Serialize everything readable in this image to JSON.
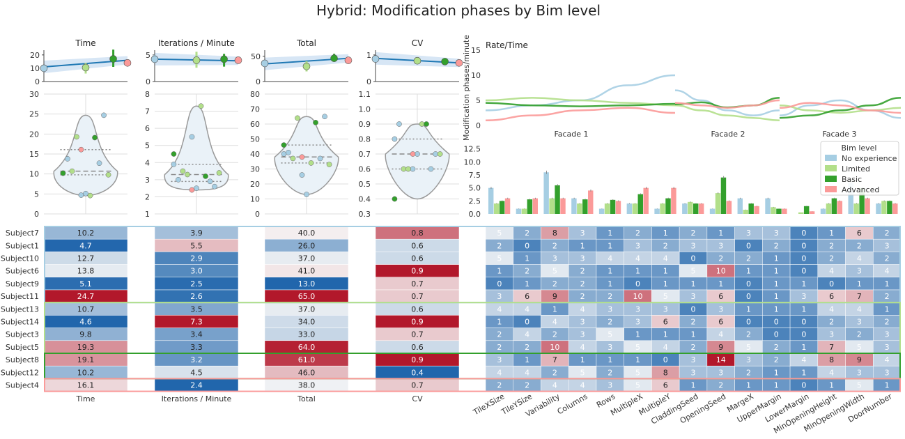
{
  "title": "Hybrid: Modification phases by Bim level",
  "colors": {
    "levels": [
      "#a6cee3",
      "#b2df8a",
      "#33a02c",
      "#fb9a99"
    ],
    "regline": "#1f78b4",
    "band": "#a6c8e8",
    "violin_fill": "#eaf2f8",
    "violin_stroke": "#999999",
    "grid": "#dddddd",
    "heat_low": "#2166ac",
    "heat_mid": "#f7f7f7",
    "heat_high": "#b2182b"
  },
  "chart_data": [
    {
      "type": "scatter",
      "title": "Time",
      "ylim": [
        0,
        22
      ],
      "yticks": [
        "0",
        "10",
        "20"
      ],
      "points": [
        {
          "group": 0,
          "y": 10
        },
        {
          "group": 1,
          "y": 10.5
        },
        {
          "group": 2,
          "y": 17
        },
        {
          "group": 3,
          "y": 14
        }
      ],
      "errors": [
        {
          "group": 0,
          "low": 9,
          "high": 11
        },
        {
          "group": 1,
          "low": 6,
          "high": 14
        },
        {
          "group": 2,
          "low": 11,
          "high": 24
        },
        {
          "group": 3,
          "low": 13,
          "high": 16
        }
      ],
      "regression": {
        "start": 11,
        "end": 16
      }
    },
    {
      "type": "scatter",
      "title": "Iterations / Minute",
      "ylim": [
        0,
        5.5
      ],
      "yticks": [
        "0",
        "5"
      ],
      "points": [
        {
          "group": 0,
          "y": 4.2
        },
        {
          "group": 1,
          "y": 4.0
        },
        {
          "group": 2,
          "y": 4.2
        },
        {
          "group": 3,
          "y": 4.0
        }
      ],
      "errors": [
        {
          "group": 0,
          "low": 3.5,
          "high": 5.0
        },
        {
          "group": 1,
          "low": 2.6,
          "high": 5.6
        },
        {
          "group": 2,
          "low": 2.8,
          "high": 5.2
        },
        {
          "group": 3,
          "low": 3.5,
          "high": 4.5
        }
      ],
      "regression": {
        "start": 4.2,
        "end": 3.9
      }
    },
    {
      "type": "scatter",
      "title": "Total",
      "ylim": [
        0,
        58
      ],
      "yticks": [
        "0",
        "50"
      ],
      "points": [
        {
          "group": 0,
          "y": 36
        },
        {
          "group": 1,
          "y": 30
        },
        {
          "group": 2,
          "y": 46
        },
        {
          "group": 3,
          "y": 42
        }
      ],
      "errors": [
        {
          "group": 0,
          "low": 30,
          "high": 42
        },
        {
          "group": 1,
          "low": 20,
          "high": 40
        },
        {
          "group": 2,
          "low": 40,
          "high": 55
        },
        {
          "group": 3,
          "low": 38,
          "high": 46
        }
      ],
      "regression": {
        "start": 35,
        "end": 46
      }
    },
    {
      "type": "scatter",
      "title": "CV",
      "ylim": [
        0,
        1.1
      ],
      "yticks": [
        "0",
        "1"
      ],
      "points": [
        {
          "group": 0,
          "y": 0.85
        },
        {
          "group": 1,
          "y": 0.78
        },
        {
          "group": 2,
          "y": 0.75
        },
        {
          "group": 3,
          "y": 0.7
        }
      ],
      "errors": [
        {
          "group": 0,
          "low": 0.8,
          "high": 0.9
        },
        {
          "group": 1,
          "low": 0.7,
          "high": 0.86
        },
        {
          "group": 2,
          "low": 0.65,
          "high": 0.85
        },
        {
          "group": 3,
          "low": 0.65,
          "high": 0.75
        }
      ],
      "regression": {
        "start": 0.87,
        "end": 0.7
      }
    },
    {
      "type": "line",
      "title": "Rate/Time",
      "ylabel": "Modification phases/minute",
      "ylim": [
        0,
        15
      ],
      "yticks": [
        "0",
        "5",
        "10",
        "15"
      ],
      "facets": [
        "Facade 1",
        "Facade 2",
        "Facade 3"
      ],
      "series": [
        {
          "group": 0,
          "segments": [
            [
              3,
              4,
              5,
              8,
              10
            ],
            [
              7,
              5,
              3,
              2,
              3
            ],
            [
              2,
              4,
              5,
              3,
              1.5
            ]
          ]
        },
        {
          "group": 1,
          "segments": [
            [
              5,
              5.5,
              5,
              4.5,
              4
            ],
            [
              4,
              3,
              2,
              1.5,
              1
            ],
            [
              4,
              3,
              2.5,
              3,
              3.5
            ]
          ]
        },
        {
          "group": 2,
          "segments": [
            [
              4.5,
              4,
              3.8,
              4,
              4.3
            ],
            [
              4.2,
              4.6,
              3.6,
              4,
              5.5
            ],
            [
              1.5,
              2,
              3,
              4,
              5.5
            ]
          ]
        },
        {
          "group": 3,
          "segments": [
            [
              1,
              2,
              3,
              3.5,
              2.5
            ],
            [
              4.5,
              4,
              3.5,
              4,
              5
            ],
            [
              3.5,
              4.5,
              4,
              3,
              2.5
            ]
          ]
        }
      ]
    },
    {
      "type": "bar",
      "ylim": [
        0,
        15
      ],
      "yticks": [
        "0.0",
        "2.5",
        "5.0",
        "7.5",
        "10.0",
        "12.5"
      ],
      "legend_title": "Bim level",
      "legend": [
        "No experience",
        "Limited",
        "Basic",
        "Advanced"
      ],
      "legend_position": "upper-right",
      "categories": [
        "TileXSize",
        "TileYSize",
        "Variability",
        "Columns",
        "Rows",
        "MultipleX",
        "MultipleY",
        "CladdingSeed",
        "OpeningSeed",
        "MargeX",
        "UpperMargin",
        "LowerMargin",
        "MinOpeningHeight",
        "MinOpeningWidth",
        "DoorNumber"
      ],
      "series": [
        {
          "name": "No experience",
          "values": [
            5,
            1,
            8,
            3,
            1,
            2,
            1,
            2,
            1,
            3,
            3,
            0,
            1,
            6,
            2
          ]
        },
        {
          "name": "Limited",
          "values": [
            2,
            1,
            3,
            2,
            2,
            2,
            2,
            2.3,
            4,
            0.8,
            1.3,
            0.3,
            2,
            2,
            2.5
          ]
        },
        {
          "name": "Basic",
          "values": [
            2.5,
            2.8,
            5.5,
            2.8,
            2.7,
            3.8,
            3,
            2,
            7,
            2,
            1,
            1.5,
            3,
            5,
            2.5
          ]
        },
        {
          "name": "Advanced",
          "values": [
            3,
            3,
            3,
            4.5,
            2.5,
            5,
            5,
            2,
            2.5,
            1.5,
            1,
            0.5,
            2.5,
            3,
            2
          ]
        }
      ]
    },
    {
      "type": "violin",
      "panels": [
        {
          "name": "Time",
          "ylim": [
            0,
            30
          ],
          "yticks": [
            "0",
            "5",
            "10",
            "15",
            "20",
            "25",
            "30"
          ]
        },
        {
          "name": "Iterations / Minute",
          "ylim": [
            1,
            8
          ],
          "yticks": [
            "1",
            "2",
            "3",
            "4",
            "5",
            "6",
            "7",
            "8"
          ]
        },
        {
          "name": "Total",
          "ylim": [
            0,
            80
          ],
          "yticks": [
            "0",
            "10",
            "20",
            "30",
            "40",
            "50",
            "60",
            "70",
            "80"
          ]
        },
        {
          "name": "CV",
          "ylim": [
            0.3,
            1.1
          ],
          "yticks": [
            "0.3",
            "0.4",
            "0.5",
            "0.6",
            "0.7",
            "0.8",
            "0.9",
            "1.0",
            "1.1"
          ]
        }
      ]
    },
    {
      "type": "heatmap",
      "subjects": [
        "Subject7",
        "Subject1",
        "Subject10",
        "Subject6",
        "Subject9",
        "Subject11",
        "Subject13",
        "Subject14",
        "Subject3",
        "Subject5",
        "Subject8",
        "Subject12",
        "Subject4"
      ],
      "groups": [
        0,
        0,
        0,
        0,
        0,
        0,
        1,
        1,
        1,
        1,
        2,
        2,
        3
      ],
      "metrics": [
        "Time",
        "Iterations / Minute",
        "Total",
        "CV"
      ],
      "metric_values": [
        [
          10.2,
          3.9,
          40.0,
          0.8
        ],
        [
          4.7,
          5.5,
          26.0,
          0.6
        ],
        [
          12.7,
          2.9,
          37.0,
          0.6
        ],
        [
          13.8,
          3.0,
          41.0,
          0.9
        ],
        [
          5.1,
          2.5,
          13.0,
          0.7
        ],
        [
          24.7,
          2.6,
          65.0,
          0.7
        ],
        [
          10.7,
          3.5,
          37.0,
          0.6
        ],
        [
          4.6,
          7.3,
          34.0,
          0.9
        ],
        [
          9.8,
          3.4,
          33.0,
          0.7
        ],
        [
          19.3,
          3.3,
          64.0,
          0.6
        ],
        [
          19.1,
          3.2,
          61.0,
          0.9
        ],
        [
          10.2,
          4.5,
          46.0,
          0.4
        ],
        [
          16.1,
          2.4,
          38.0,
          0.7
        ]
      ],
      "metric_cv_raw": [
        0.81,
        0.62,
        0.63,
        0.91,
        0.71,
        0.7,
        0.64,
        0.88,
        0.68,
        0.62,
        0.92,
        0.42,
        0.72
      ],
      "param_names": [
        "TileXSize",
        "TileYSize",
        "Variability",
        "Columns",
        "Rows",
        "MultipleX",
        "MultipleY",
        "CladdingSeed",
        "OpeningSeed",
        "MargeX",
        "UpperMargin",
        "LowerMargin",
        "MinOpeningHeight",
        "MinOpeningWidth",
        "DoorNumber"
      ],
      "param_values": [
        [
          5,
          2,
          8,
          3,
          1,
          2,
          1,
          2,
          1,
          3,
          3,
          0,
          1,
          6,
          2
        ],
        [
          2,
          0,
          2,
          1,
          1,
          3,
          2,
          3,
          3,
          0,
          2,
          0,
          2,
          2,
          3
        ],
        [
          5,
          1,
          3,
          3,
          4,
          4,
          4,
          0,
          2,
          2,
          1,
          0,
          2,
          4,
          2
        ],
        [
          1,
          2,
          5,
          2,
          1,
          1,
          1,
          5,
          10,
          1,
          1,
          0,
          4,
          3,
          4
        ],
        [
          0,
          1,
          2,
          2,
          1,
          0,
          1,
          1,
          1,
          0,
          1,
          1,
          0,
          1,
          1
        ],
        [
          3,
          6,
          9,
          2,
          2,
          10,
          5,
          3,
          6,
          0,
          1,
          3,
          6,
          7,
          2
        ],
        [
          4,
          4,
          1,
          4,
          3,
          3,
          3,
          0,
          3,
          1,
          1,
          1,
          4,
          4,
          1
        ],
        [
          1,
          0,
          4,
          3,
          2,
          3,
          6,
          2,
          6,
          0,
          0,
          0,
          2,
          3,
          2
        ],
        [
          2,
          4,
          2,
          3,
          5,
          1,
          1,
          1,
          4,
          2,
          0,
          0,
          3,
          2,
          3
        ],
        [
          2,
          2,
          10,
          4,
          3,
          5,
          4,
          2,
          9,
          5,
          2,
          1,
          7,
          5,
          3
        ],
        [
          3,
          1,
          7,
          1,
          1,
          1,
          0,
          3,
          14,
          3,
          2,
          4,
          8,
          9,
          4
        ],
        [
          4,
          4,
          2,
          5,
          2,
          5,
          8,
          3,
          3,
          2,
          1,
          1,
          4,
          3,
          3
        ],
        [
          2,
          2,
          4,
          4,
          3,
          5,
          6,
          1,
          2,
          1,
          1,
          0,
          1,
          5,
          1
        ]
      ]
    }
  ]
}
